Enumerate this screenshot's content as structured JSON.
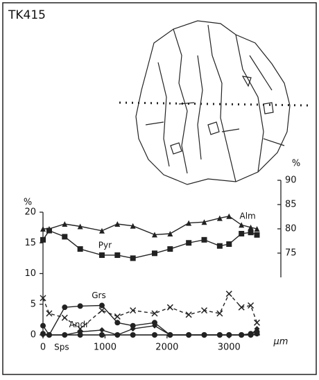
{
  "chart_data": {
    "type": "line",
    "title": "TK415",
    "x_label": "µm",
    "y_label": "%",
    "y2_label": "%",
    "xlim": [
      0,
      3500
    ],
    "xticks": [
      0,
      1000,
      2000,
      3000
    ],
    "ylim": [
      0,
      20
    ],
    "yticks": [
      0,
      5,
      10,
      15,
      20
    ],
    "y2lim": [
      70,
      90
    ],
    "y2ticks": [
      75,
      80,
      85,
      90
    ],
    "x": [
      0,
      100,
      350,
      600,
      950,
      1200,
      1450,
      1800,
      2050,
      2350,
      2600,
      2850,
      3000,
      3200,
      3350,
      3450
    ],
    "series": [
      {
        "name": "Alm",
        "axis": "y2",
        "marker": "triangle",
        "color": "#222",
        "values": [
          80,
          80,
          81,
          80.5,
          79.6,
          81,
          80.6,
          78.8,
          79,
          81.2,
          81.4,
          82.2,
          82.6,
          80.8,
          80.3,
          80
        ]
      },
      {
        "name": "Pyr",
        "marker": "square",
        "color": "#222",
        "values": [
          15.5,
          17,
          16,
          14,
          13,
          13,
          12.5,
          13.3,
          14,
          15,
          15.5,
          14.5,
          14.8,
          16.5,
          16.7,
          16.3
        ]
      },
      {
        "name": "Grs",
        "marker": "circle",
        "color": "#222",
        "values": [
          1.5,
          0,
          4.5,
          4.7,
          4.8,
          2,
          1.5,
          2,
          0,
          0,
          0,
          0,
          0,
          0,
          0.2,
          0.5
        ]
      },
      {
        "name": "Andr",
        "marker": "diamond",
        "color": "#222",
        "values": [
          0,
          0,
          0,
          0.5,
          0.8,
          0,
          1,
          1.5,
          0,
          0,
          0,
          0,
          0,
          0,
          0,
          1
        ]
      },
      {
        "name": "Sps",
        "marker": "circle",
        "color": "#222",
        "values": [
          0.2,
          0,
          0,
          0,
          0,
          0,
          0,
          0,
          0,
          0,
          0,
          0,
          0,
          0,
          0,
          0.2
        ]
      },
      {
        "marker": "cross",
        "dash": true,
        "color": "#222",
        "values": [
          6,
          3.5,
          2.8,
          1,
          4,
          3,
          4,
          3.5,
          4.5,
          3.3,
          4,
          3.5,
          6.7,
          4.5,
          4.8,
          2
        ]
      }
    ]
  }
}
